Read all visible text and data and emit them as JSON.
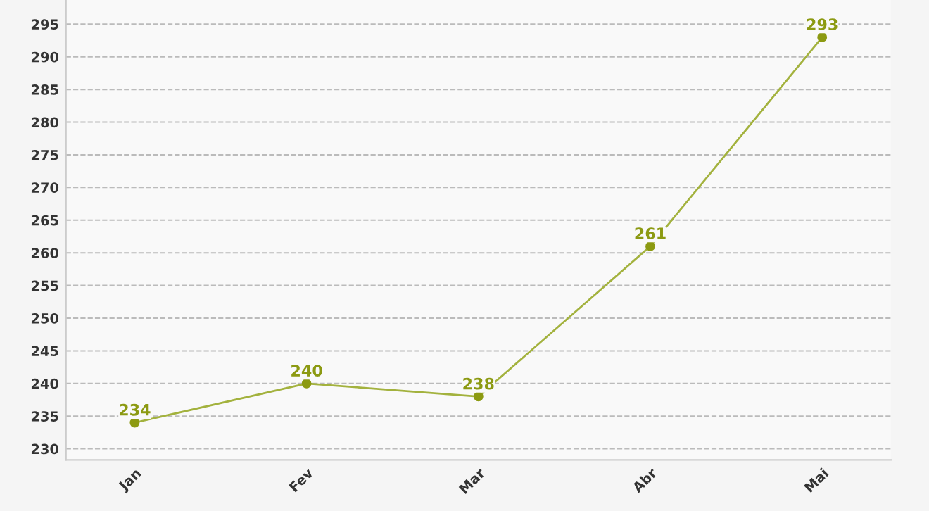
{
  "chart_data": {
    "type": "line",
    "categories": [
      "Jan",
      "Fev",
      "Mar",
      "Abr",
      "Mai"
    ],
    "series": [
      {
        "color": "#a3b23e",
        "values": [
          234,
          240,
          238,
          261,
          293
        ]
      }
    ],
    "ylim": [
      228.3,
      298.7
    ],
    "yticks": [
      230,
      235,
      240,
      245,
      250,
      255,
      260,
      265,
      270,
      275,
      280,
      285,
      290,
      295
    ],
    "grid": "y",
    "marker": "circle",
    "line_style": "solid",
    "data_labels": true,
    "legend": false
  }
}
